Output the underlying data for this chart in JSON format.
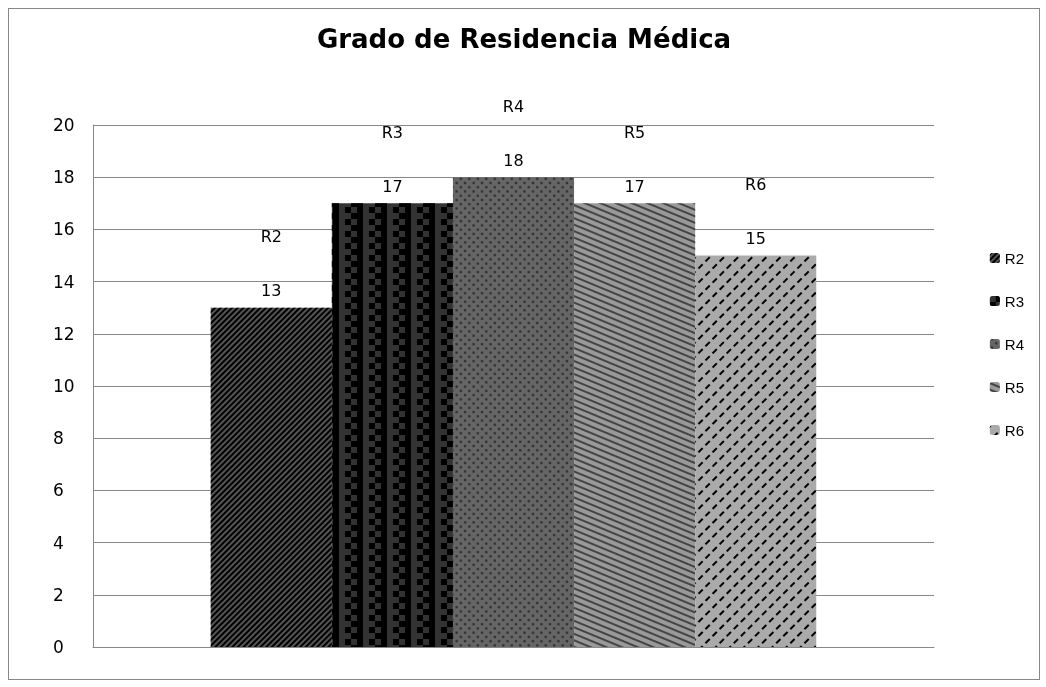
{
  "chart_data": {
    "type": "bar",
    "title": "Grado de Residencia Médica",
    "categories": [
      null
    ],
    "series": [
      {
        "name": "R2",
        "color": "#555555",
        "values": [
          13
        ]
      },
      {
        "name": "R3",
        "color": "#333333",
        "values": [
          17
        ]
      },
      {
        "name": "R4",
        "color": "#666666",
        "values": [
          18
        ]
      },
      {
        "name": "R5",
        "color": "#999999",
        "values": [
          17
        ]
      },
      {
        "name": "R6",
        "color": "#aaaaaa",
        "values": [
          15
        ]
      }
    ],
    "ylim": [
      0,
      20
    ],
    "yticks": [
      0,
      2,
      4,
      6,
      8,
      10,
      12,
      14,
      16,
      18,
      20
    ],
    "grid": "y",
    "legend": "right",
    "data_labels": true
  }
}
